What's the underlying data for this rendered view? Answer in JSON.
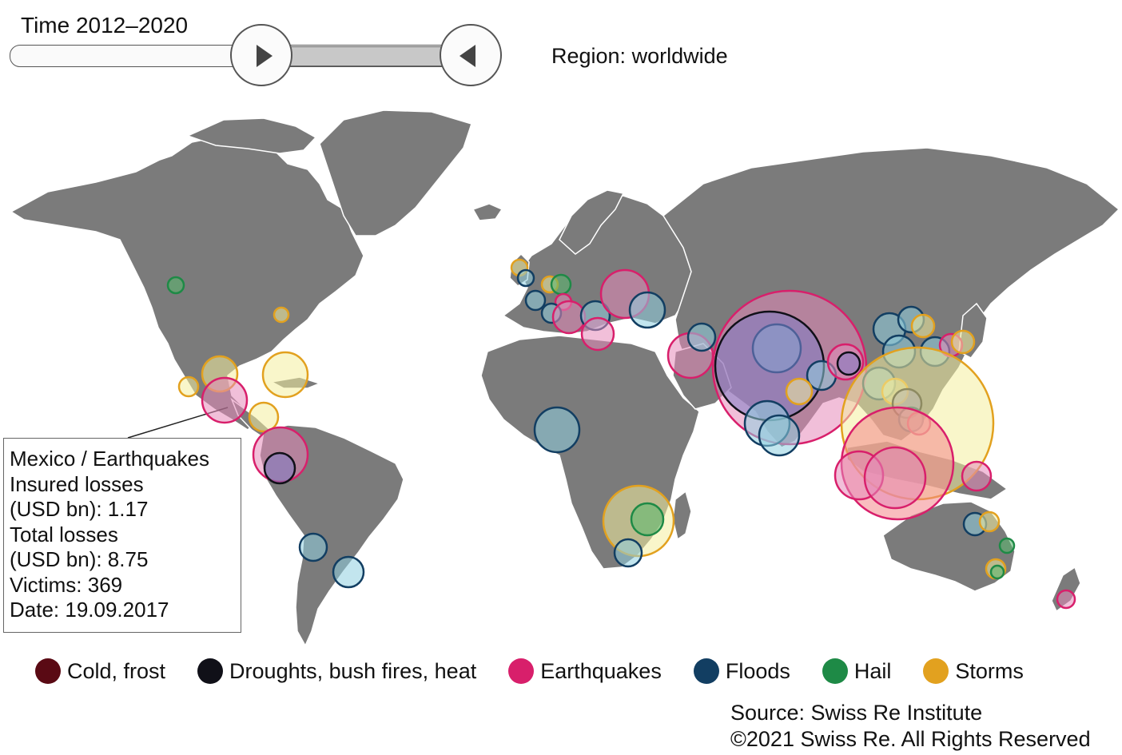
{
  "controls": {
    "time_prefix": "Time",
    "time_range": "2012–2020",
    "region": "Region: worldwide",
    "play_icon": "play-triangle-icon",
    "back_icon": "back-triangle-icon"
  },
  "tooltip": {
    "title": "Mexico / Earthquakes",
    "insured_label": "Insured losses",
    "insured_value": "(USD bn): 1.17",
    "total_label": "Total losses",
    "total_value": "(USD bn): 8.75",
    "victims": "Victims: 369",
    "date": "Date: 19.09.2017"
  },
  "legend": [
    {
      "label": "Cold, frost",
      "color": "#5a0a14"
    },
    {
      "label": "Droughts, bush fires, heat",
      "color": "#101018"
    },
    {
      "label": "Earthquakes",
      "color": "#d81f6b"
    },
    {
      "label": "Floods",
      "color": "#123e62"
    },
    {
      "label": "Hail",
      "color": "#1e8a46"
    },
    {
      "label": "Storms",
      "color": "#e2a11f"
    }
  ],
  "source": {
    "line1": "Source: Swiss Re Institute",
    "line2": "©2021 Swiss Re. All Rights Reserved"
  },
  "colors": {
    "land": "#7b7b7b",
    "earthquake_fill": "#e58bb9",
    "flood_fill": "#8fd0e0",
    "storm_fill": "#f4ee9e",
    "hail_fill": "#5ab96e",
    "drought_fill": "#7e7bc4",
    "big_fill": "#f4878a"
  }
}
